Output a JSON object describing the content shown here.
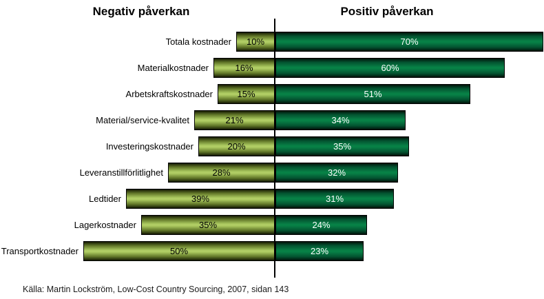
{
  "header": {
    "negative_title": "Negativ påverkan",
    "positive_title": "Positiv påverkan"
  },
  "chart_data": {
    "type": "bar",
    "subtype": "diverging-horizontal",
    "title": "Negativ påverkan / Positiv påverkan",
    "categories": [
      "Totala kostnader",
      "Materialkostnader",
      "Arbetskraftskostnader",
      "Material/service-kvalitet",
      "Investeringskostnader",
      "Leveranstillförlitlighet",
      "Ledtider",
      "Lagerkostnader",
      "Transportkostnader"
    ],
    "series": [
      {
        "name": "Negativ påverkan",
        "side": "left",
        "values": [
          10,
          16,
          15,
          21,
          20,
          28,
          39,
          35,
          50
        ],
        "bar_color": "#aac85f",
        "value_label_color": "#000000"
      },
      {
        "name": "Positiv påverkan",
        "side": "right",
        "values": [
          70,
          60,
          51,
          34,
          35,
          32,
          31,
          24,
          23
        ],
        "bar_color": "#077c44",
        "value_label_color": "#ffffff"
      }
    ],
    "value_suffix": "%",
    "axis": {
      "center_line": true,
      "left_max": 50,
      "right_max": 70,
      "gridlines": false,
      "data_labels": "inside-center",
      "category_labels": "at-end-of-left-bar"
    }
  },
  "footer": {
    "source": "Källa: Martin Lockström, Low-Cost Country Sourcing, 2007, sidan 143"
  }
}
